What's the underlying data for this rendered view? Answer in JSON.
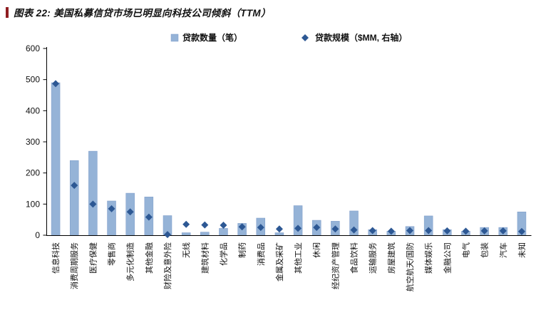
{
  "header": {
    "title": "图表 22: 美国私募信贷市场已明显向科技公司倾斜（TTM）"
  },
  "chart_data": {
    "type": "bar",
    "title": "图表 22: 美国私募信贷市场已明显向科技公司倾斜（TTM）",
    "categories": [
      "信息科技",
      "消费周期服务",
      "医疗保健",
      "零售商",
      "多元化制造",
      "其他金融",
      "财险及意外险",
      "无线",
      "建筑材料",
      "化学品",
      "制药",
      "消费品",
      "金属及采矿",
      "其他工业",
      "休闲",
      "经纪资产管理",
      "食品饮料",
      "运输服务",
      "房屋建筑",
      "航空航天/国防",
      "媒体娱乐",
      "金融公司",
      "电气",
      "包装",
      "汽车",
      "未知"
    ],
    "series": [
      {
        "name": "贷款数量（笔）",
        "type": "bar",
        "axis": "left",
        "values": [
          490,
          240,
          270,
          110,
          135,
          123,
          63,
          8,
          10,
          22,
          38,
          55,
          8,
          95,
          48,
          45,
          78,
          18,
          13,
          28,
          62,
          18,
          13,
          25,
          25,
          75
        ]
      },
      {
        "name": "贷款规模（$MM, 右轴）",
        "type": "scatter",
        "marker": "diamond",
        "axis": "right",
        "values": [
          487,
          160,
          100,
          85,
          75,
          58,
          2,
          35,
          33,
          32,
          27,
          25,
          20,
          22,
          25,
          20,
          17,
          15,
          13,
          15,
          15,
          14,
          13,
          14,
          14,
          12
        ]
      }
    ],
    "xlabel": "",
    "ylabel": "",
    "ylim": [
      0,
      600
    ],
    "yticks": [
      0,
      100,
      200,
      300,
      400,
      500,
      600
    ],
    "grid": false,
    "legend_position": "top-center",
    "colors": {
      "bar_fill": "#95B3D7",
      "bar_stroke": "#7E9CC9",
      "diamond": "#2D5894",
      "axis": "#000000",
      "tick_label": "#111111",
      "title_accent": "#8F1D21"
    }
  }
}
